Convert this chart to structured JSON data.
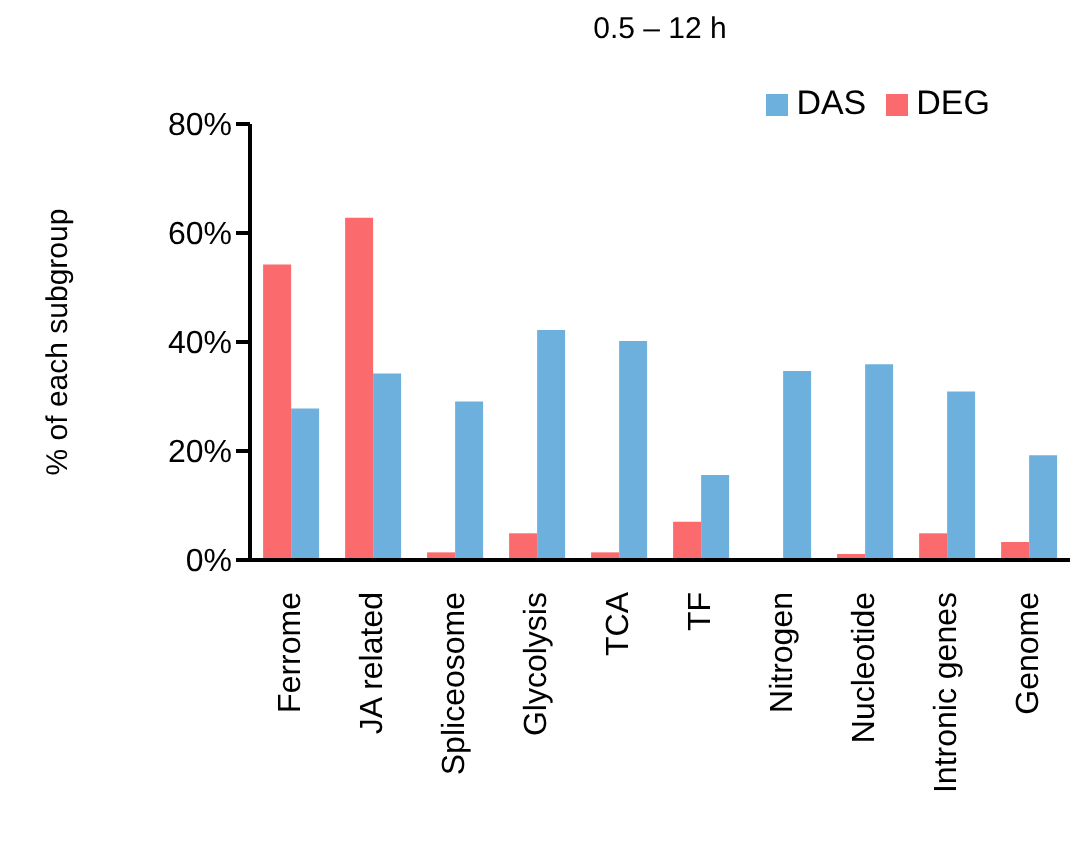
{
  "chart_data": {
    "type": "bar",
    "title": "0.5 – 12 h",
    "ylabel": "% of each subgroup",
    "categories": [
      "Ferrome",
      "JA related",
      "Spliceosome",
      "Glycolysis",
      "TCA",
      "TF",
      "Nitrogen",
      "Nucleotide",
      "Intronic genes",
      "Genome"
    ],
    "series": [
      {
        "name": "DEG",
        "color": "#fb6a6c",
        "values": [
          54.2,
          62.8,
          1.4,
          4.9,
          1.4,
          7,
          0,
          1.1,
          4.9,
          3.3
        ]
      },
      {
        "name": "DAS",
        "color": "#6eb0dd",
        "values": [
          27.8,
          34.2,
          29.1,
          42.2,
          40.2,
          15.6,
          34.7,
          35.9,
          30.9,
          19.2
        ]
      }
    ],
    "ylim": [
      0,
      80
    ],
    "yticks": [
      {
        "value": 0,
        "label": "0%"
      },
      {
        "value": 20,
        "label": "20%"
      },
      {
        "value": 40,
        "label": "40%"
      },
      {
        "value": 60,
        "label": "60%"
      },
      {
        "value": 80,
        "label": "80%"
      }
    ],
    "grid": false,
    "legend": "top right"
  }
}
